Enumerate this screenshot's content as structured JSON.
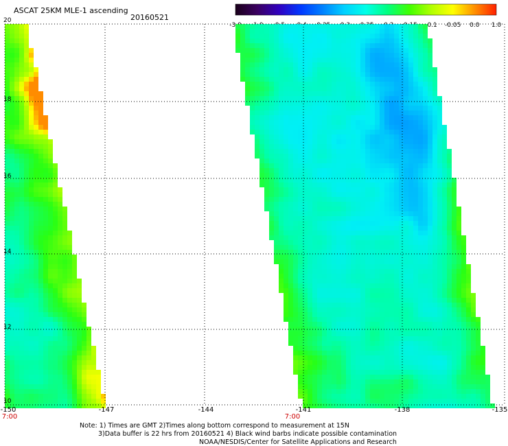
{
  "header": {
    "title": "ASCAT 25KM MLE-1 ascending",
    "date": "20160521"
  },
  "colorbar": {
    "labels": [
      "-3.0",
      "-1.0",
      "-0.5",
      "-0.4",
      "-0.35",
      "-0.3",
      "-0.25",
      "-0.2",
      "-0.15",
      "-0.1",
      "-0.05",
      "0.0",
      "1.0"
    ],
    "colors": [
      "#1a001a",
      "#3a0060",
      "#3000c0",
      "#0038ff",
      "#0080ff",
      "#00d0ff",
      "#00ffe8",
      "#00ff80",
      "#40ff00",
      "#b0ff00",
      "#ffff00",
      "#ff9000",
      "#ff2000"
    ]
  },
  "axes": {
    "x_ticks": [
      "-150",
      "-147",
      "-144",
      "-141",
      "-138",
      "-135"
    ],
    "y_ticks": [
      "20",
      "18",
      "16",
      "14",
      "12",
      "10"
    ],
    "time_labels": [
      "7:00",
      "7:00"
    ]
  },
  "notes": {
    "line1": "Note: 1) Times are GMT 2)Times along bottom correspond to measurement at 15N",
    "line2": "3)Data buffer is 22 hrs from 20160521 4) Black wind barbs indicate possible contamination",
    "line3": "NOAA/NESDIS/Center for Satellite Applications and Research"
  },
  "style": {
    "grid_color": "#000000",
    "time_label_color": "#cc0000"
  }
}
